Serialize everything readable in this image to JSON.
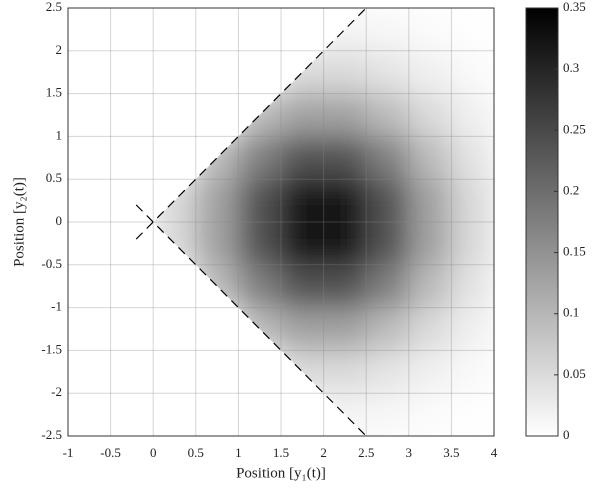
{
  "chart_data": {
    "type": "heatmap",
    "xlabel": "Position [y₁(t)]",
    "ylabel": "Position [y₂(t)]",
    "xlim": [
      -1,
      4
    ],
    "ylim": [
      -2.5,
      2.5
    ],
    "xticks": [
      -1,
      -0.5,
      0,
      0.5,
      1,
      1.5,
      2,
      2.5,
      3,
      3.5,
      4
    ],
    "yticks": [
      -2.5,
      -2,
      -1.5,
      -1,
      -0.5,
      0,
      0.5,
      1,
      1.5,
      2,
      2.5
    ],
    "grid": true,
    "xbins": [
      -1,
      -0.5,
      0,
      0.5,
      1,
      1.5,
      2,
      2.5,
      3,
      3.5,
      4
    ],
    "ybins": [
      2.5,
      2,
      1.5,
      1,
      0.5,
      0,
      -0.5,
      -1,
      -1.5,
      -2,
      -2.5
    ],
    "z": [
      [
        0,
        0,
        0,
        0,
        0,
        0,
        0.015,
        0.011,
        0.006,
        0.002
      ],
      [
        0,
        0,
        0,
        0,
        0,
        0.051,
        0.051,
        0.037,
        0.02,
        0.008
      ],
      [
        0,
        0,
        0,
        0,
        0.094,
        0.128,
        0.128,
        0.094,
        0.051,
        0.02
      ],
      [
        0,
        0,
        0,
        0.094,
        0.175,
        0.238,
        0.238,
        0.175,
        0.094,
        0.037
      ],
      [
        0,
        0,
        0.051,
        0.128,
        0.238,
        0.324,
        0.324,
        0.238,
        0.128,
        0.051
      ],
      [
        0,
        0,
        0.051,
        0.128,
        0.238,
        0.324,
        0.324,
        0.238,
        0.128,
        0.051
      ],
      [
        0,
        0,
        0,
        0.094,
        0.175,
        0.238,
        0.238,
        0.175,
        0.094,
        0.037
      ],
      [
        0,
        0,
        0,
        0,
        0.094,
        0.128,
        0.128,
        0.094,
        0.051,
        0.02
      ],
      [
        0,
        0,
        0,
        0,
        0,
        0.051,
        0.051,
        0.037,
        0.02,
        0.008
      ],
      [
        0,
        0,
        0,
        0,
        0,
        0,
        0.015,
        0.011,
        0.006,
        0.002
      ]
    ],
    "colormap": [
      "#ffffff",
      "#000000"
    ],
    "zlim": [
      0,
      0.35
    ],
    "zticks": [
      0,
      0.05,
      0.1,
      0.15,
      0.2,
      0.25,
      0.3,
      0.35
    ],
    "lines": [
      {
        "x": [
          -0.2,
          2.5
        ],
        "y": [
          0.2,
          -2.5
        ],
        "color": "#000000"
      },
      {
        "x": [
          -0.2,
          2.5
        ],
        "y": [
          -0.2,
          2.5
        ],
        "color": "#000000"
      }
    ]
  }
}
